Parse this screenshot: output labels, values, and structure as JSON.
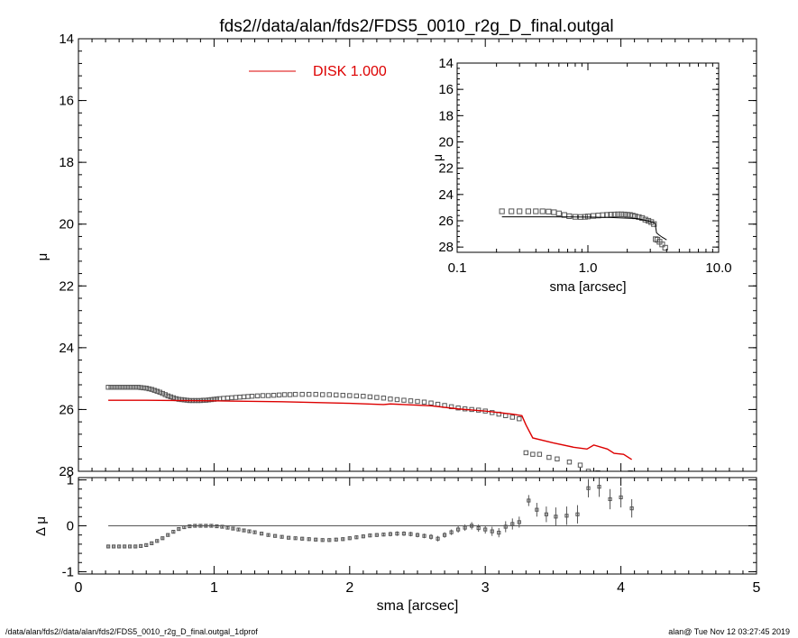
{
  "title": "fds2//data/alan/fds2/FDS5_0010_r2g_D_final.outgal",
  "footer": {
    "left": "/data/alan/fds2//data/alan/fds2/FDS5_0010_r2g_D_final.outgal_1dprof",
    "right": "alan@  Tue Nov 12 03:27:45 2019"
  },
  "colors": {
    "axes": "#000000",
    "model": "#dd0000",
    "data": "#555555"
  },
  "chart_data": [
    {
      "type": "scatter",
      "panel": "main-profile",
      "ylabel": "μ",
      "xlim": [
        0,
        5
      ],
      "ylim": [
        28,
        14
      ],
      "yticks": [
        "14",
        "16",
        "18",
        "20",
        "22",
        "24",
        "26",
        "28"
      ],
      "legend": {
        "label": "DISK  1.000",
        "position": "top-center"
      },
      "series": [
        {
          "kind": "data-boxes",
          "x": [
            0.22,
            0.24,
            0.26,
            0.28,
            0.3,
            0.32,
            0.34,
            0.36,
            0.38,
            0.4,
            0.42,
            0.44,
            0.46,
            0.48,
            0.5,
            0.52,
            0.54,
            0.56,
            0.58,
            0.6,
            0.62,
            0.64,
            0.66,
            0.68,
            0.7,
            0.72,
            0.74,
            0.76,
            0.78,
            0.8,
            0.82,
            0.84,
            0.86,
            0.88,
            0.9,
            0.92,
            0.94,
            0.96,
            0.98,
            1.0,
            1.02,
            1.04,
            1.07,
            1.1,
            1.13,
            1.16,
            1.19,
            1.22,
            1.25,
            1.28,
            1.32,
            1.36,
            1.4,
            1.44,
            1.48,
            1.52,
            1.56,
            1.6,
            1.65,
            1.7,
            1.75,
            1.8,
            1.85,
            1.9,
            1.95,
            2.0,
            2.05,
            2.1,
            2.15,
            2.2,
            2.25,
            2.3,
            2.35,
            2.4,
            2.45,
            2.5,
            2.55,
            2.6,
            2.65,
            2.7,
            2.75,
            2.8,
            2.85,
            2.9,
            2.95,
            3.0,
            3.05,
            3.1,
            3.15,
            3.2,
            3.25,
            3.3,
            3.35,
            3.4,
            3.47,
            3.53,
            3.62,
            3.7,
            3.76,
            3.83,
            3.9,
            4.0,
            4.07
          ],
          "y": [
            25.28,
            25.28,
            25.28,
            25.28,
            25.28,
            25.28,
            25.28,
            25.28,
            25.28,
            25.28,
            25.28,
            25.28,
            25.29,
            25.3,
            25.31,
            25.33,
            25.35,
            25.38,
            25.41,
            25.44,
            25.48,
            25.52,
            25.56,
            25.59,
            25.62,
            25.65,
            25.67,
            25.68,
            25.69,
            25.7,
            25.71,
            25.71,
            25.71,
            25.71,
            25.71,
            25.7,
            25.7,
            25.69,
            25.68,
            25.67,
            25.66,
            25.65,
            25.64,
            25.63,
            25.62,
            25.61,
            25.6,
            25.59,
            25.58,
            25.57,
            25.56,
            25.55,
            25.55,
            25.54,
            25.53,
            25.52,
            25.52,
            25.51,
            25.51,
            25.51,
            25.51,
            25.52,
            25.52,
            25.53,
            25.54,
            25.55,
            25.56,
            25.57,
            25.59,
            25.61,
            25.63,
            25.66,
            25.68,
            25.7,
            25.72,
            25.74,
            25.76,
            25.79,
            25.83,
            25.87,
            25.91,
            25.95,
            25.98,
            26.0,
            26.02,
            26.05,
            26.1,
            26.15,
            26.2,
            26.25,
            26.3,
            27.4,
            27.45,
            27.45,
            27.55,
            27.6,
            27.7,
            27.8,
            28.0,
            28.05,
            28.1,
            28.1,
            28.05
          ]
        },
        {
          "kind": "model-line",
          "label": "DISK  1.000",
          "x": [
            0.22,
            0.5,
            1.0,
            1.5,
            2.0,
            2.25,
            2.3,
            2.4,
            2.6,
            2.8,
            3.0,
            3.1,
            3.2,
            3.27,
            3.3,
            3.35,
            3.5,
            3.65,
            3.75,
            3.8,
            3.9,
            3.95,
            4.02,
            4.08
          ],
          "y": [
            25.7,
            25.7,
            25.72,
            25.75,
            25.8,
            25.84,
            25.82,
            25.84,
            25.88,
            25.98,
            26.05,
            26.1,
            26.15,
            26.2,
            26.5,
            26.92,
            27.08,
            27.22,
            27.28,
            27.15,
            27.28,
            27.42,
            27.45,
            27.62
          ]
        }
      ]
    },
    {
      "type": "scatter",
      "panel": "inset-log",
      "xlabel": "sma [arcsec]",
      "ylabel": "μ",
      "xscale": "log",
      "xlim": [
        0.1,
        10.0
      ],
      "ylim": [
        28.4,
        14
      ],
      "xticks": [
        "0.1",
        "1.0",
        "10.0"
      ],
      "yticks": [
        "14",
        "16",
        "18",
        "20",
        "22",
        "24",
        "26",
        "28"
      ],
      "series": [
        {
          "kind": "data-boxes",
          "x": [
            0.22,
            0.26,
            0.3,
            0.35,
            0.4,
            0.45,
            0.5,
            0.55,
            0.6,
            0.66,
            0.72,
            0.8,
            0.88,
            0.95,
            1.0,
            1.1,
            1.2,
            1.3,
            1.4,
            1.5,
            1.6,
            1.7,
            1.8,
            1.9,
            2.0,
            2.1,
            2.2,
            2.3,
            2.45,
            2.6,
            2.75,
            2.9,
            3.05,
            3.2,
            3.3,
            3.4,
            3.53,
            3.7,
            3.9
          ],
          "y": [
            25.28,
            25.28,
            25.28,
            25.28,
            25.28,
            25.28,
            25.3,
            25.35,
            25.44,
            25.56,
            25.65,
            25.7,
            25.71,
            25.7,
            25.67,
            25.63,
            25.6,
            25.57,
            25.55,
            25.53,
            25.52,
            25.51,
            25.51,
            25.52,
            25.54,
            25.56,
            25.61,
            25.66,
            25.72,
            25.79,
            25.91,
            26.0,
            26.1,
            26.25,
            27.4,
            27.45,
            27.6,
            27.8,
            28.05
          ]
        },
        {
          "kind": "model-line",
          "x": [
            0.22,
            0.5,
            1.0,
            1.5,
            2.0,
            2.4,
            2.8,
            3.0,
            3.2,
            3.27,
            3.3,
            3.35,
            3.5,
            3.7,
            4.0
          ],
          "y": [
            25.7,
            25.7,
            25.72,
            25.75,
            25.8,
            25.84,
            25.98,
            26.05,
            26.15,
            26.2,
            26.5,
            26.92,
            27.08,
            27.25,
            27.45
          ]
        }
      ]
    },
    {
      "type": "scatter",
      "panel": "residuals",
      "xlabel": "sma [arcsec]",
      "ylabel": "Δ μ",
      "xlim": [
        0,
        5
      ],
      "ylim": [
        -1.05,
        1.05
      ],
      "xticks": [
        "0",
        "1",
        "2",
        "3",
        "4",
        "5"
      ],
      "yticks": [
        "1",
        "0",
        "-1"
      ],
      "reference_line": 0,
      "series": [
        {
          "kind": "data-boxes-errorbars",
          "x": [
            0.22,
            0.26,
            0.3,
            0.34,
            0.38,
            0.42,
            0.46,
            0.5,
            0.54,
            0.58,
            0.62,
            0.66,
            0.7,
            0.74,
            0.78,
            0.82,
            0.86,
            0.9,
            0.94,
            0.98,
            1.02,
            1.06,
            1.1,
            1.14,
            1.18,
            1.22,
            1.26,
            1.3,
            1.35,
            1.4,
            1.45,
            1.5,
            1.55,
            1.6,
            1.65,
            1.7,
            1.75,
            1.8,
            1.85,
            1.9,
            1.95,
            2.0,
            2.05,
            2.1,
            2.15,
            2.2,
            2.25,
            2.3,
            2.35,
            2.4,
            2.45,
            2.5,
            2.55,
            2.6,
            2.65,
            2.7,
            2.75,
            2.8,
            2.85,
            2.9,
            2.95,
            3.0,
            3.05,
            3.1,
            3.15,
            3.2,
            3.25,
            3.32,
            3.38,
            3.45,
            3.52,
            3.6,
            3.68,
            3.76,
            3.84,
            3.92,
            4.0,
            4.08
          ],
          "y": [
            -0.45,
            -0.45,
            -0.45,
            -0.45,
            -0.45,
            -0.45,
            -0.44,
            -0.42,
            -0.38,
            -0.33,
            -0.27,
            -0.2,
            -0.13,
            -0.07,
            -0.03,
            -0.01,
            0.0,
            0.0,
            0.0,
            0.0,
            -0.01,
            -0.02,
            -0.04,
            -0.06,
            -0.08,
            -0.1,
            -0.12,
            -0.14,
            -0.17,
            -0.2,
            -0.22,
            -0.24,
            -0.26,
            -0.27,
            -0.28,
            -0.29,
            -0.3,
            -0.31,
            -0.31,
            -0.3,
            -0.29,
            -0.27,
            -0.25,
            -0.23,
            -0.21,
            -0.2,
            -0.19,
            -0.18,
            -0.17,
            -0.17,
            -0.18,
            -0.2,
            -0.22,
            -0.24,
            -0.28,
            -0.2,
            -0.14,
            -0.08,
            -0.04,
            0.0,
            -0.05,
            -0.08,
            -0.12,
            -0.15,
            -0.02,
            0.04,
            0.08,
            0.55,
            0.35,
            0.25,
            0.2,
            0.22,
            0.25,
            0.82,
            0.85,
            0.58,
            0.62,
            0.38
          ],
          "err": [
            0.03,
            0.03,
            0.03,
            0.03,
            0.03,
            0.03,
            0.03,
            0.03,
            0.03,
            0.03,
            0.03,
            0.03,
            0.03,
            0.03,
            0.03,
            0.03,
            0.03,
            0.03,
            0.03,
            0.03,
            0.03,
            0.03,
            0.03,
            0.03,
            0.03,
            0.03,
            0.03,
            0.03,
            0.03,
            0.03,
            0.03,
            0.03,
            0.03,
            0.03,
            0.04,
            0.04,
            0.04,
            0.04,
            0.04,
            0.04,
            0.04,
            0.04,
            0.04,
            0.04,
            0.04,
            0.04,
            0.04,
            0.05,
            0.05,
            0.05,
            0.05,
            0.05,
            0.05,
            0.06,
            0.06,
            0.06,
            0.06,
            0.07,
            0.07,
            0.08,
            0.08,
            0.09,
            0.1,
            0.1,
            0.12,
            0.12,
            0.12,
            0.12,
            0.15,
            0.17,
            0.2,
            0.2,
            0.2,
            0.2,
            0.22,
            0.22,
            0.22,
            0.2
          ]
        }
      ]
    }
  ]
}
